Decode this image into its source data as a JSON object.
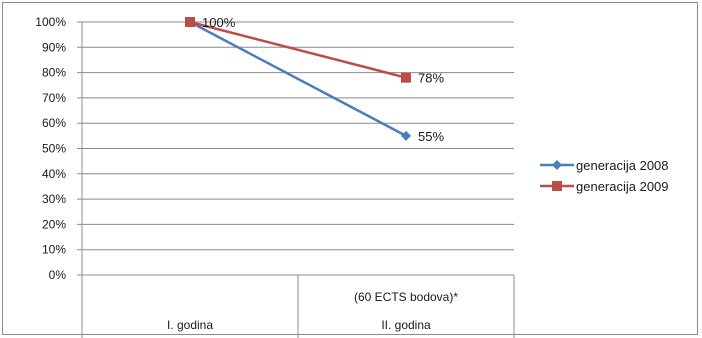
{
  "chart_data": {
    "type": "line",
    "categories": [
      {
        "sublabel": "",
        "label": "I. godina"
      },
      {
        "sublabel": "(60 ECTS bodova)*",
        "label": "II. godina"
      }
    ],
    "series": [
      {
        "name": "generacija 2008",
        "values": [
          100,
          55
        ],
        "color": "#4a7ebb",
        "marker": "diamond",
        "labels": [
          "",
          "55%"
        ]
      },
      {
        "name": "generacija 2009",
        "values": [
          100,
          78
        ],
        "color": "#be4b48",
        "marker": "square",
        "labels": [
          "100%",
          "78%"
        ]
      }
    ],
    "ylim": [
      0,
      100
    ],
    "yticks": [
      "0%",
      "10%",
      "20%",
      "30%",
      "40%",
      "50%",
      "60%",
      "70%",
      "80%",
      "90%",
      "100%"
    ],
    "grid": true,
    "legend": "right"
  }
}
